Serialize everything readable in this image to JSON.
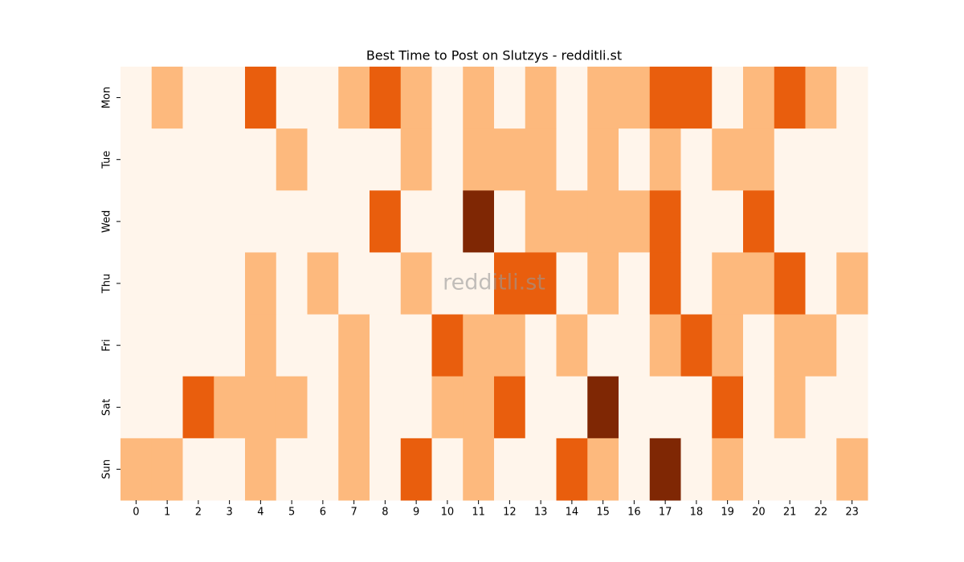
{
  "chart_data": {
    "type": "heatmap",
    "title": "Best Time to Post on Slutzys - redditli.st",
    "annotation": "redditli.st",
    "x_categories": [
      "0",
      "1",
      "2",
      "3",
      "4",
      "5",
      "6",
      "7",
      "8",
      "9",
      "10",
      "11",
      "12",
      "13",
      "14",
      "15",
      "16",
      "17",
      "18",
      "19",
      "20",
      "21",
      "22",
      "23"
    ],
    "y_categories": [
      "Mon",
      "Tue",
      "Wed",
      "Thu",
      "Fri",
      "Sat",
      "Sun"
    ],
    "values": [
      [
        0,
        1,
        0,
        0,
        2,
        0,
        0,
        1,
        2,
        1,
        0,
        1,
        0,
        1,
        0,
        1,
        1,
        2,
        2,
        0,
        1,
        2,
        1,
        0
      ],
      [
        0,
        0,
        0,
        0,
        0,
        1,
        0,
        0,
        0,
        1,
        0,
        1,
        1,
        1,
        0,
        1,
        0,
        1,
        0,
        1,
        1,
        0,
        0,
        0
      ],
      [
        0,
        0,
        0,
        0,
        0,
        0,
        0,
        0,
        2,
        0,
        0,
        3,
        0,
        1,
        1,
        1,
        1,
        2,
        0,
        0,
        2,
        0,
        0,
        0
      ],
      [
        0,
        0,
        0,
        0,
        1,
        0,
        1,
        0,
        0,
        1,
        0,
        0,
        2,
        2,
        0,
        1,
        0,
        2,
        0,
        1,
        1,
        2,
        0,
        1
      ],
      [
        0,
        0,
        0,
        0,
        1,
        0,
        0,
        1,
        0,
        0,
        2,
        1,
        1,
        0,
        1,
        0,
        0,
        1,
        2,
        1,
        0,
        1,
        1,
        0
      ],
      [
        0,
        0,
        2,
        1,
        1,
        1,
        0,
        1,
        0,
        0,
        1,
        1,
        2,
        0,
        0,
        3,
        0,
        0,
        0,
        2,
        0,
        1,
        0,
        0
      ],
      [
        1,
        1,
        0,
        0,
        1,
        0,
        0,
        1,
        0,
        2,
        0,
        1,
        0,
        0,
        2,
        1,
        0,
        3,
        0,
        1,
        0,
        0,
        0,
        1
      ]
    ],
    "vlim": [
      0,
      3
    ],
    "colormap": [
      "#fff5eb",
      "#fdb97d",
      "#e95e0d",
      "#7f2704"
    ]
  }
}
